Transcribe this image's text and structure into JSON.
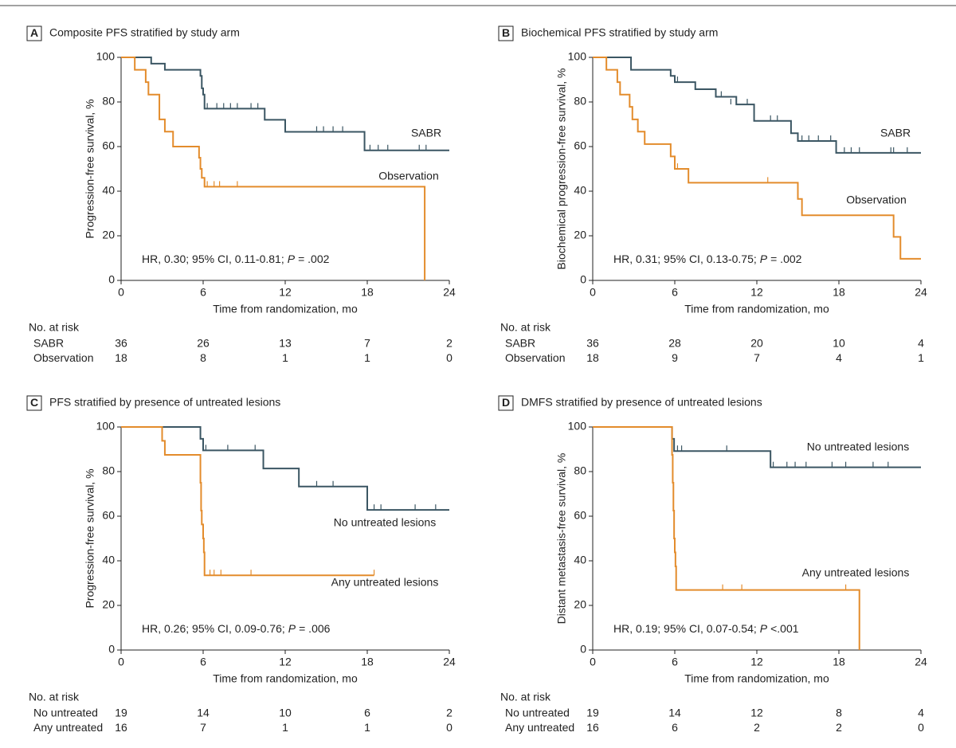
{
  "chart_data": [
    {
      "type": "line",
      "step": true,
      "panel_label": "A",
      "title": "Composite PFS stratified by study arm",
      "xlabel": "Time from randomization, mo",
      "ylabel": "Progression-free survival, %",
      "xlim": [
        0,
        24
      ],
      "ylim": [
        0,
        100
      ],
      "xticks": [
        0,
        6,
        12,
        18,
        24
      ],
      "yticks": [
        0,
        20,
        40,
        60,
        80,
        100
      ],
      "annotation": {
        "text": "HR, 0.30; 95% CI, 0.11-0.81;",
        "p_label": "P",
        "p_value": "= .002"
      },
      "series": [
        {
          "name": "SABR",
          "color": "#3b5663",
          "x": [
            0,
            2.2,
            3.2,
            5.8,
            5.9,
            6.0,
            6.1,
            10.5,
            12.0,
            17.8,
            24
          ],
          "values": [
            100,
            97.2,
            94.4,
            91.7,
            86.1,
            83.3,
            77.0,
            72.0,
            66.6,
            58.3,
            58.3
          ],
          "censored_x": [
            6.3,
            7.0,
            7.5,
            8.0,
            8.5,
            9.5,
            10.0,
            14.3,
            14.8,
            15.5,
            16.2,
            18.2,
            18.8,
            19.5,
            21.8,
            22.3
          ],
          "censored_values": [
            77.0,
            77.0,
            77.0,
            77.0,
            77.0,
            77.0,
            77.0,
            66.6,
            66.6,
            66.6,
            66.6,
            58.3,
            58.3,
            58.3,
            58.3,
            58.3
          ]
        },
        {
          "name": "Observation",
          "color": "#e38c2c",
          "x": [
            0,
            1.0,
            1.8,
            2.0,
            2.8,
            3.2,
            3.8,
            5.7,
            5.8,
            5.9,
            6.1,
            22.2
          ],
          "values": [
            100,
            94.4,
            88.9,
            83.3,
            72.2,
            66.7,
            60.0,
            55.0,
            50.0,
            46.0,
            42.0,
            0
          ],
          "censored_x": [
            6.3,
            6.8,
            7.2,
            8.5
          ],
          "censored_values": [
            42.0,
            42.0,
            42.0,
            42.0
          ]
        }
      ],
      "risk_table": {
        "title": "No. at risk",
        "rows": [
          {
            "label": "SABR",
            "values": [
              36,
              26,
              13,
              7,
              2
            ]
          },
          {
            "label": "Observation",
            "values": [
              18,
              8,
              1,
              1,
              0
            ]
          }
        ]
      }
    },
    {
      "type": "line",
      "step": true,
      "panel_label": "B",
      "title": "Biochemical PFS stratified by study arm",
      "xlabel": "Time from randomization, mo",
      "ylabel": "Biochemical progression-free survival, %",
      "xlim": [
        0,
        24
      ],
      "ylim": [
        0,
        100
      ],
      "xticks": [
        0,
        6,
        12,
        18,
        24
      ],
      "yticks": [
        0,
        20,
        40,
        60,
        80,
        100
      ],
      "annotation": {
        "text": "HR, 0.31; 95% CI, 0.13-0.75;",
        "p_label": "P",
        "p_value": "= .002"
      },
      "series": [
        {
          "name": "SABR",
          "color": "#3b5663",
          "x": [
            0,
            2.8,
            5.7,
            6.0,
            7.5,
            9.0,
            10.5,
            11.8,
            14.5,
            15.0,
            17.8,
            24
          ],
          "values": [
            100,
            94.4,
            91.7,
            88.9,
            85.7,
            82.3,
            78.9,
            71.5,
            66.0,
            62.5,
            57.2,
            57.2
          ],
          "censored_x": [
            6.2,
            9.4,
            10.1,
            11.3,
            13.0,
            13.5,
            15.3,
            15.8,
            16.5,
            17.4,
            18.4,
            18.9,
            19.5,
            21.8,
            22.0,
            23.0
          ],
          "censored_values": [
            88.9,
            82.3,
            78.9,
            78.9,
            71.5,
            71.5,
            62.5,
            62.5,
            62.5,
            62.5,
            57.2,
            57.2,
            57.2,
            57.2,
            57.2,
            57.2
          ]
        },
        {
          "name": "Observation",
          "color": "#e38c2c",
          "x": [
            0,
            1.0,
            1.8,
            2.0,
            2.7,
            2.9,
            3.3,
            3.8,
            5.7,
            6.0,
            7.0,
            15.0,
            15.3,
            22.0,
            22.5,
            24
          ],
          "values": [
            100,
            94.4,
            88.9,
            83.3,
            77.8,
            72.2,
            66.7,
            61.1,
            55.6,
            50.0,
            43.8,
            36.5,
            29.2,
            19.5,
            9.7,
            9.7
          ],
          "censored_x": [
            6.2,
            12.8
          ],
          "censored_values": [
            50.0,
            43.8
          ]
        }
      ],
      "risk_table": {
        "title": "No. at risk",
        "rows": [
          {
            "label": "SABR",
            "values": [
              36,
              28,
              20,
              10,
              4
            ]
          },
          {
            "label": "Observation",
            "values": [
              18,
              9,
              7,
              4,
              1
            ]
          }
        ]
      }
    },
    {
      "type": "line",
      "step": true,
      "panel_label": "C",
      "title": "PFS stratified by presence of untreated lesions",
      "xlabel": "Time from randomization, mo",
      "ylabel": "Progression-free survival, %",
      "xlim": [
        0,
        24
      ],
      "ylim": [
        0,
        100
      ],
      "xticks": [
        0,
        6,
        12,
        18,
        24
      ],
      "yticks": [
        0,
        20,
        40,
        60,
        80,
        100
      ],
      "annotation": {
        "text": "HR, 0.26; 95% CI, 0.09-0.76;",
        "p_label": "P",
        "p_value": "= .006"
      },
      "series": [
        {
          "name": "No untreated lesions",
          "color": "#3b5663",
          "x": [
            0,
            5.8,
            6.0,
            10.4,
            13.0,
            18.0,
            24
          ],
          "values": [
            100,
            94.7,
            89.5,
            81.4,
            73.3,
            62.8,
            62.8
          ],
          "censored_x": [
            6.2,
            7.8,
            9.8,
            14.3,
            15.5,
            18.5,
            19.0,
            21.5,
            23.0
          ],
          "censored_values": [
            89.5,
            89.5,
            89.5,
            73.3,
            73.3,
            62.8,
            62.8,
            62.8,
            62.8
          ]
        },
        {
          "name": "Any untreated lesions",
          "color": "#e38c2c",
          "x": [
            0,
            3.0,
            3.2,
            5.8,
            5.85,
            5.9,
            6.0,
            6.05,
            6.1,
            18.5
          ],
          "values": [
            100,
            93.8,
            87.5,
            75.0,
            62.5,
            56.3,
            50.0,
            43.8,
            33.5,
            33.5
          ],
          "censored_x": [
            6.5,
            6.8,
            7.3,
            9.5,
            18.5
          ],
          "censored_values": [
            33.5,
            33.5,
            33.5,
            33.5,
            33.5
          ]
        }
      ],
      "risk_table": {
        "title": "No. at risk",
        "rows": [
          {
            "label": "No untreated",
            "values": [
              19,
              14,
              10,
              6,
              2
            ]
          },
          {
            "label": "Any untreated",
            "values": [
              16,
              7,
              1,
              1,
              0
            ]
          }
        ]
      }
    },
    {
      "type": "line",
      "step": true,
      "panel_label": "D",
      "title": "DMFS stratified by presence of untreated lesions",
      "xlabel": "Time from randomization, mo",
      "ylabel": "Distant metastasis-free survival, %",
      "xlim": [
        0,
        24
      ],
      "ylim": [
        0,
        100
      ],
      "xticks": [
        0,
        6,
        12,
        18,
        24
      ],
      "yticks": [
        0,
        20,
        40,
        60,
        80,
        100
      ],
      "annotation": {
        "text": "HR, 0.19; 95% CI, 0.07-0.54;",
        "p_label": "P",
        "p_value": "<.001"
      },
      "series": [
        {
          "name": "No untreated lesions",
          "color": "#3b5663",
          "x": [
            0,
            5.8,
            5.95,
            13.0,
            24
          ],
          "values": [
            100,
            94.7,
            89.2,
            81.9,
            81.9
          ],
          "censored_x": [
            6.2,
            6.5,
            9.8,
            13.2,
            14.2,
            14.8,
            15.6,
            17.5,
            18.5,
            20.5,
            21.6
          ],
          "censored_values": [
            89.2,
            89.2,
            89.2,
            81.9,
            81.9,
            81.9,
            81.9,
            81.9,
            81.9,
            81.9,
            81.9
          ]
        },
        {
          "name": "Any untreated lesions",
          "color": "#e38c2c",
          "x": [
            0,
            5.8,
            5.85,
            5.9,
            5.95,
            6.0,
            6.05,
            6.1,
            19.5
          ],
          "values": [
            100,
            87.5,
            75.0,
            62.5,
            50.0,
            43.8,
            37.5,
            26.9,
            0
          ],
          "censored_x": [
            9.5,
            10.9,
            18.5
          ],
          "censored_values": [
            26.9,
            26.9,
            26.9
          ]
        }
      ],
      "risk_table": {
        "title": "No. at risk",
        "rows": [
          {
            "label": "No untreated",
            "values": [
              19,
              14,
              12,
              8,
              4
            ]
          },
          {
            "label": "Any untreated",
            "values": [
              16,
              6,
              2,
              2,
              0
            ]
          }
        ]
      }
    }
  ]
}
